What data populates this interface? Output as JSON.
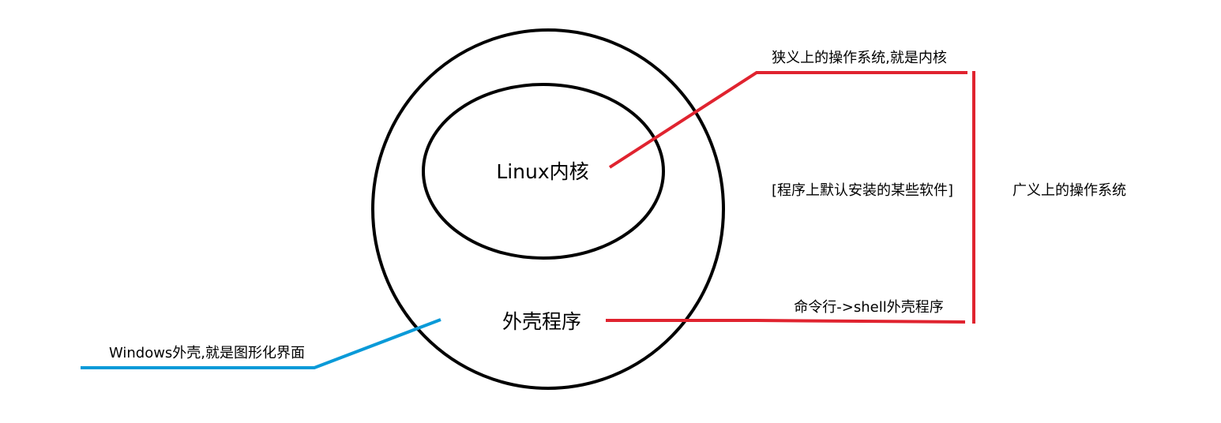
{
  "nodes": [
    {
      "label": "Linux内核"
    },
    {
      "label": "外壳程序"
    }
  ],
  "annotations": [
    {
      "text": "狭义上的操作系统,就是内核"
    },
    {
      "text": "[程序上默认安装的某些软件]"
    },
    {
      "text": "广义上的操作系统"
    },
    {
      "text": "命令行->shell外壳程序"
    },
    {
      "text": "Windows外壳,就是图形化界面"
    }
  ]
}
